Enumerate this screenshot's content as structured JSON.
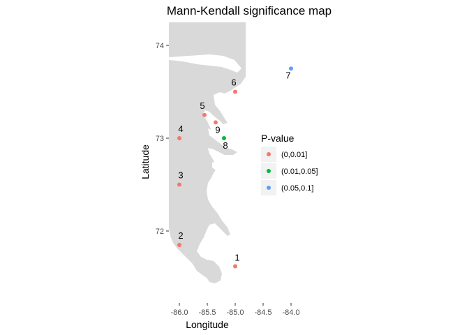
{
  "title": "Mann-Kendall significance map",
  "x_axis": {
    "label": "Longitude",
    "ticks": [
      {
        "value": -86.0,
        "label": "-86.0"
      },
      {
        "value": -85.5,
        "label": "-85.5"
      },
      {
        "value": -85.0,
        "label": "-85.0"
      },
      {
        "value": -84.5,
        "label": "-84.5"
      },
      {
        "value": -84.0,
        "label": "-84.0"
      }
    ]
  },
  "y_axis": {
    "label": "Latitude",
    "ticks": [
      {
        "value": 72,
        "label": "72"
      },
      {
        "value": 73,
        "label": "73"
      },
      {
        "value": 74,
        "label": "74"
      }
    ]
  },
  "legend": {
    "title": "P-value",
    "items": [
      {
        "label": "(0,0.01]",
        "color": "#F8766D"
      },
      {
        "label": "(0.01,0.05]",
        "color": "#00BA38"
      },
      {
        "label": "(0.05,0.1]",
        "color": "#619CFF"
      }
    ]
  },
  "colors": {
    "land": "#d9d9d9",
    "tick": "#333333"
  },
  "sites": [
    {
      "id": "1",
      "lon": -85.0,
      "lat": 71.62,
      "pvalue_class": "(0,0.01]",
      "color": "#F8766D"
    },
    {
      "id": "2",
      "lon": -86.0,
      "lat": 71.85,
      "pvalue_class": "(0,0.01]",
      "color": "#F8766D"
    },
    {
      "id": "3",
      "lon": -86.0,
      "lat": 72.5,
      "pvalue_class": "(0,0.01]",
      "color": "#F8766D"
    },
    {
      "id": "4",
      "lon": -86.0,
      "lat": 73.0,
      "pvalue_class": "(0,0.01]",
      "color": "#F8766D"
    },
    {
      "id": "5",
      "lon": -85.55,
      "lat": 73.25,
      "pvalue_class": "(0,0.01]",
      "color": "#F8766D"
    },
    {
      "id": "6",
      "lon": -85.0,
      "lat": 73.5,
      "pvalue_class": "(0,0.01]",
      "color": "#F8766D"
    },
    {
      "id": "7",
      "lon": -84.0,
      "lat": 73.75,
      "pvalue_class": "(0.05,0.1]",
      "color": "#619CFF"
    },
    {
      "id": "8",
      "lon": -85.2,
      "lat": 73.0,
      "pvalue_class": "(0.01,0.05]",
      "color": "#00BA38"
    },
    {
      "id": "9",
      "lon": -85.35,
      "lat": 73.17,
      "pvalue_class": "(0,0.01]",
      "color": "#F8766D"
    }
  ]
}
